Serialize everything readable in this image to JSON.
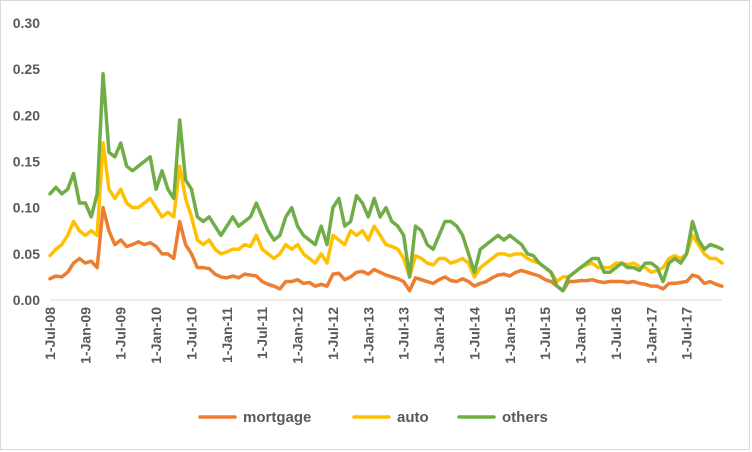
{
  "chart_data": {
    "type": "line",
    "title": "",
    "xlabel": "",
    "ylabel": "",
    "ylim": [
      0,
      0.3
    ],
    "y_ticks": [
      "0.00",
      "0.05",
      "0.10",
      "0.15",
      "0.20",
      "0.25",
      "0.30"
    ],
    "grid": false,
    "legend": "bottom",
    "x_tick_labels": [
      "1-Jul-08",
      "1-Jan-09",
      "1-Jul-09",
      "1-Jan-10",
      "1-Jul-10",
      "1-Jan-11",
      "1-Jul-11",
      "1-Jan-12",
      "1-Jul-12",
      "1-Jan-13",
      "1-Jul-13",
      "1-Jan-14",
      "1-Jul-14",
      "1-Jan-15",
      "1-Jul-15",
      "1-Jan-16",
      "1-Jul-16",
      "1-Jan-17",
      "1-Jul-17"
    ],
    "x_start": "2008-07",
    "x_interval": "monthly",
    "series": [
      {
        "name": "mortgage",
        "color": "#ED7D31",
        "values": [
          0.023,
          0.026,
          0.025,
          0.03,
          0.04,
          0.045,
          0.04,
          0.042,
          0.035,
          0.1,
          0.075,
          0.06,
          0.065,
          0.058,
          0.06,
          0.063,
          0.06,
          0.062,
          0.058,
          0.05,
          0.05,
          0.045,
          0.085,
          0.06,
          0.05,
          0.035,
          0.035,
          0.034,
          0.028,
          0.025,
          0.024,
          0.026,
          0.024,
          0.028,
          0.027,
          0.026,
          0.02,
          0.017,
          0.015,
          0.012,
          0.02,
          0.02,
          0.022,
          0.018,
          0.019,
          0.015,
          0.017,
          0.015,
          0.028,
          0.029,
          0.022,
          0.025,
          0.03,
          0.031,
          0.028,
          0.033,
          0.03,
          0.027,
          0.025,
          0.023,
          0.02,
          0.01,
          0.024,
          0.022,
          0.02,
          0.018,
          0.022,
          0.025,
          0.021,
          0.02,
          0.023,
          0.02,
          0.015,
          0.018,
          0.02,
          0.024,
          0.027,
          0.028,
          0.026,
          0.03,
          0.032,
          0.03,
          0.028,
          0.026,
          0.022,
          0.02,
          0.015,
          0.01,
          0.02,
          0.02,
          0.021,
          0.021,
          0.022,
          0.02,
          0.019,
          0.02,
          0.02,
          0.02,
          0.019,
          0.02,
          0.018,
          0.017,
          0.015,
          0.015,
          0.012,
          0.018,
          0.018,
          0.019,
          0.02,
          0.027,
          0.025,
          0.018,
          0.02,
          0.017,
          0.015
        ]
      },
      {
        "name": "auto",
        "color": "#FFC000",
        "values": [
          0.048,
          0.055,
          0.06,
          0.07,
          0.085,
          0.075,
          0.07,
          0.075,
          0.07,
          0.17,
          0.12,
          0.11,
          0.12,
          0.105,
          0.1,
          0.1,
          0.105,
          0.11,
          0.1,
          0.09,
          0.095,
          0.09,
          0.145,
          0.11,
          0.09,
          0.065,
          0.06,
          0.065,
          0.055,
          0.05,
          0.052,
          0.055,
          0.055,
          0.06,
          0.058,
          0.07,
          0.055,
          0.05,
          0.045,
          0.05,
          0.06,
          0.055,
          0.06,
          0.05,
          0.045,
          0.04,
          0.05,
          0.04,
          0.07,
          0.065,
          0.06,
          0.075,
          0.07,
          0.075,
          0.065,
          0.08,
          0.07,
          0.06,
          0.058,
          0.055,
          0.045,
          0.025,
          0.048,
          0.045,
          0.04,
          0.038,
          0.045,
          0.045,
          0.04,
          0.042,
          0.045,
          0.04,
          0.025,
          0.035,
          0.04,
          0.045,
          0.05,
          0.05,
          0.048,
          0.05,
          0.05,
          0.045,
          0.042,
          0.04,
          0.035,
          0.03,
          0.02,
          0.025,
          0.025,
          0.03,
          0.035,
          0.038,
          0.04,
          0.035,
          0.035,
          0.035,
          0.04,
          0.04,
          0.038,
          0.04,
          0.036,
          0.035,
          0.03,
          0.032,
          0.035,
          0.045,
          0.048,
          0.045,
          0.05,
          0.07,
          0.06,
          0.05,
          0.045,
          0.045,
          0.04
        ]
      },
      {
        "name": "others",
        "color": "#70AD47",
        "values": [
          0.115,
          0.122,
          0.115,
          0.12,
          0.137,
          0.105,
          0.105,
          0.09,
          0.115,
          0.245,
          0.16,
          0.155,
          0.17,
          0.145,
          0.14,
          0.145,
          0.15,
          0.155,
          0.12,
          0.14,
          0.12,
          0.11,
          0.195,
          0.13,
          0.12,
          0.09,
          0.085,
          0.09,
          0.08,
          0.07,
          0.08,
          0.09,
          0.08,
          0.085,
          0.09,
          0.105,
          0.09,
          0.075,
          0.065,
          0.07,
          0.09,
          0.1,
          0.08,
          0.07,
          0.065,
          0.06,
          0.08,
          0.06,
          0.1,
          0.11,
          0.08,
          0.085,
          0.113,
          0.105,
          0.09,
          0.11,
          0.09,
          0.1,
          0.085,
          0.08,
          0.07,
          0.025,
          0.08,
          0.075,
          0.06,
          0.055,
          0.07,
          0.085,
          0.085,
          0.08,
          0.07,
          0.05,
          0.03,
          0.055,
          0.06,
          0.065,
          0.07,
          0.065,
          0.07,
          0.065,
          0.06,
          0.05,
          0.048,
          0.04,
          0.035,
          0.03,
          0.015,
          0.01,
          0.025,
          0.03,
          0.035,
          0.04,
          0.045,
          0.045,
          0.03,
          0.03,
          0.035,
          0.04,
          0.035,
          0.035,
          0.032,
          0.04,
          0.04,
          0.035,
          0.02,
          0.04,
          0.045,
          0.04,
          0.05,
          0.085,
          0.065,
          0.055,
          0.06,
          0.058,
          0.055
        ]
      }
    ]
  }
}
